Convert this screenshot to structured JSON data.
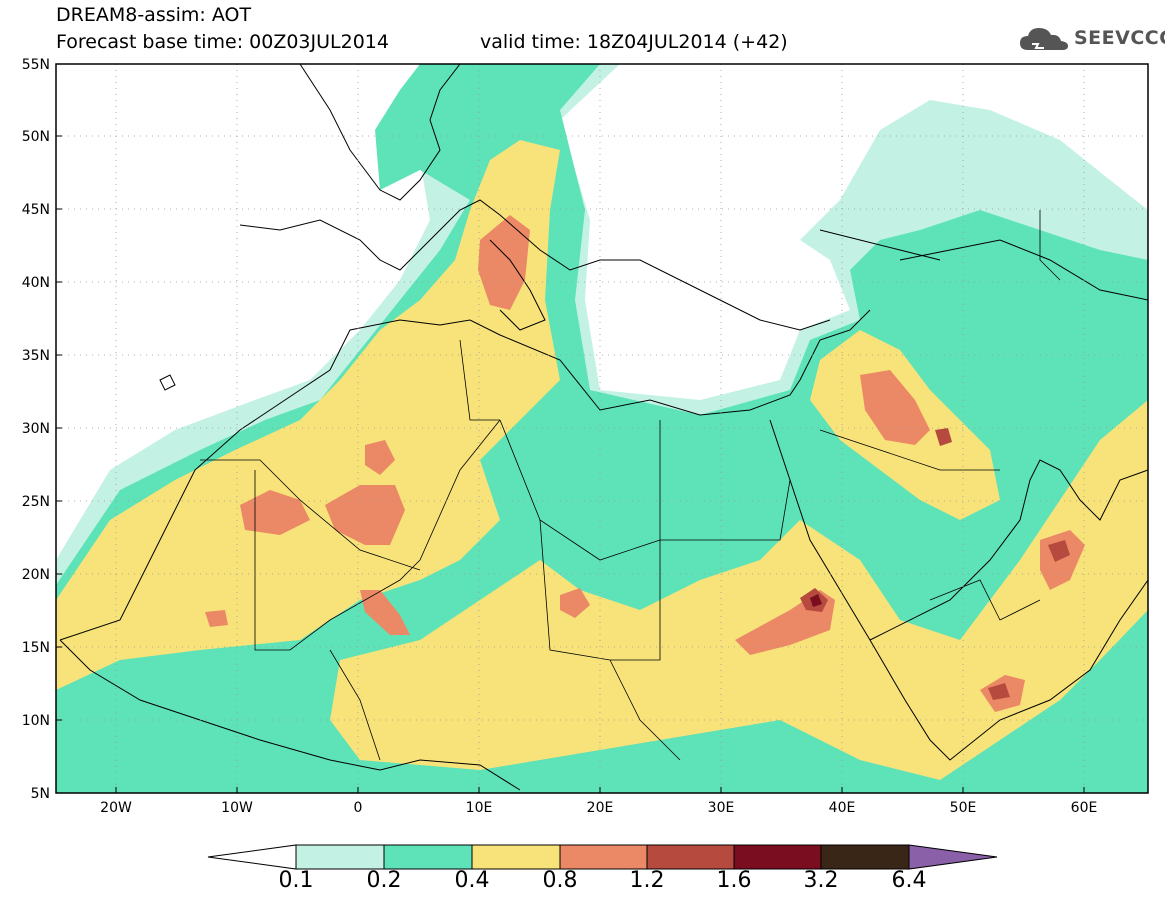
{
  "header": {
    "line1": "DREAM8-assim: AOT",
    "line2": "Forecast base time: 00Z03JUL2014",
    "valid": "valid time: 18Z04JUL2014 (+42)",
    "logo_text": "SEEVCCC"
  },
  "axes": {
    "lat_labels": [
      "55N",
      "50N",
      "45N",
      "40N",
      "35N",
      "30N",
      "25N",
      "20N",
      "15N",
      "10N",
      "5N"
    ],
    "lon_labels": [
      "20W",
      "10W",
      "0",
      "10E",
      "20E",
      "30E",
      "40E",
      "50E",
      "60E"
    ]
  },
  "colorbar": {
    "labels": [
      "0.1",
      "0.2",
      "0.4",
      "0.8",
      "1.2",
      "1.6",
      "3.2",
      "6.4"
    ],
    "colors": [
      "#ffffff",
      "#c3f2e4",
      "#5ee2b8",
      "#f7e37a",
      "#eb8866",
      "#b64a3f",
      "#7a0d1f",
      "#3a2617",
      "#8a60a8"
    ]
  },
  "map_data": {
    "variable": "AOT",
    "lon_range": [
      -25,
      65
    ],
    "lat_range": [
      5,
      55
    ],
    "colors": {
      "c01": "#c3f2e4",
      "c02": "#5ee2b8",
      "c04": "#f7e37a",
      "c08": "#eb8866",
      "c12": "#b64a3f",
      "c16": "#7a0d1f"
    }
  }
}
